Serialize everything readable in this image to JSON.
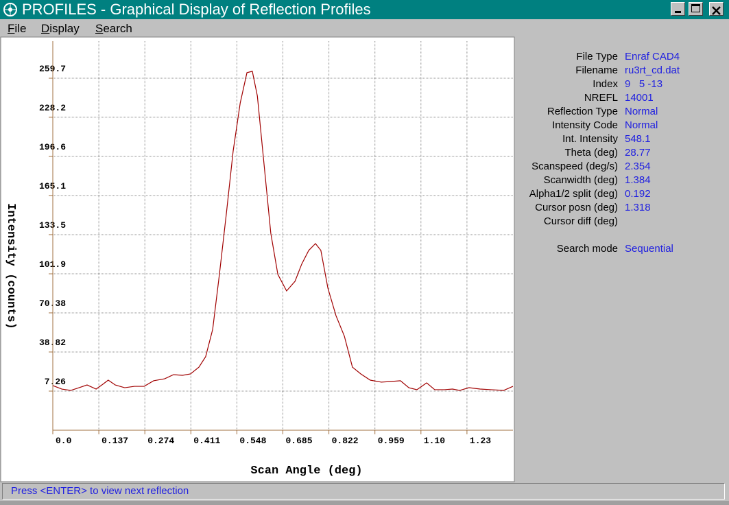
{
  "window": {
    "title": "PROFILES - Graphical Display of Reflection Profiles"
  },
  "menu": [
    "File",
    "Display",
    "Search"
  ],
  "chart_data": {
    "type": "line",
    "x_label": "Scan Angle (deg)",
    "y_label": "Intensity (counts)",
    "xlim": [
      0,
      1.37
    ],
    "ylim": [
      -24.3,
      289.6
    ],
    "xticks": [
      {
        "value": 0,
        "label": "0.0"
      },
      0.137,
      0.274,
      0.411,
      0.548,
      0.685,
      0.822,
      0.959,
      {
        "value": 1.096,
        "label": "1.10"
      },
      {
        "value": 1.233,
        "label": "1.23"
      }
    ],
    "yticks": [
      7.26,
      38.82,
      70.38,
      101.9,
      133.5,
      165.1,
      196.6,
      228.2,
      259.7
    ],
    "grid": true,
    "series": [
      {
        "color": "#a00000",
        "x": [
          0,
          0.027,
          0.053,
          0.078,
          0.102,
          0.129,
          0.149,
          0.165,
          0.186,
          0.214,
          0.243,
          0.272,
          0.3,
          0.333,
          0.359,
          0.386,
          0.41,
          0.435,
          0.455,
          0.476,
          0.496,
          0.517,
          0.537,
          0.558,
          0.578,
          0.594,
          0.609,
          0.629,
          0.649,
          0.67,
          0.696,
          0.721,
          0.741,
          0.762,
          0.782,
          0.798,
          0.819,
          0.843,
          0.868,
          0.892,
          0.917,
          0.945,
          0.978,
          1.007,
          1.035,
          1.06,
          1.084,
          1.113,
          1.137,
          1.166,
          1.19,
          1.211,
          1.239,
          1.272,
          1.305,
          1.342,
          1.37
        ],
        "values": [
          11.7,
          8.9,
          7.8,
          10,
          12.2,
          8.9,
          12.8,
          16.1,
          12.2,
          10,
          11.1,
          11.1,
          15.6,
          17.2,
          20.5,
          20,
          21.1,
          26.6,
          35,
          57.1,
          101.4,
          151.2,
          201.1,
          239.8,
          264.2,
          265.3,
          245.4,
          190,
          134.6,
          101.4,
          88.1,
          95.8,
          109.7,
          120.8,
          126.3,
          120.8,
          90.3,
          68.2,
          51.6,
          26.6,
          21.1,
          16.1,
          14.5,
          15,
          15.6,
          10,
          8.4,
          13.9,
          8.4,
          8.4,
          8.9,
          7.8,
          10,
          8.9,
          8.4,
          7.8,
          11.1
        ]
      }
    ]
  },
  "info": {
    "rows": [
      {
        "label": "File Type",
        "value": "Enraf CAD4"
      },
      {
        "label": "Filename",
        "value": "ru3rt_cd.dat"
      },
      {
        "label": "Index",
        "value": "9   5 -13"
      },
      {
        "label": "NREFL",
        "value": "14001"
      },
      {
        "label": "Reflection Type",
        "value": "Normal"
      },
      {
        "label": "Intensity Code",
        "value": "Normal"
      },
      {
        "label": "Int. Intensity",
        "value": "548.1"
      },
      {
        "label": "Theta (deg)",
        "value": "28.77"
      },
      {
        "label": "Scanspeed (deg/s)",
        "value": "2.354"
      },
      {
        "label": "Scanwidth (deg)",
        "value": "1.384"
      },
      {
        "label": "Alpha1/2 split (deg)",
        "value": "0.192"
      },
      {
        "label": "Cursor posn (deg)",
        "value": "1.318"
      },
      {
        "label": "Cursor diff (deg)"
      }
    ],
    "search": {
      "label": "Search mode",
      "value": "Sequential"
    }
  },
  "status": "Press <ENTER> to view next reflection"
}
